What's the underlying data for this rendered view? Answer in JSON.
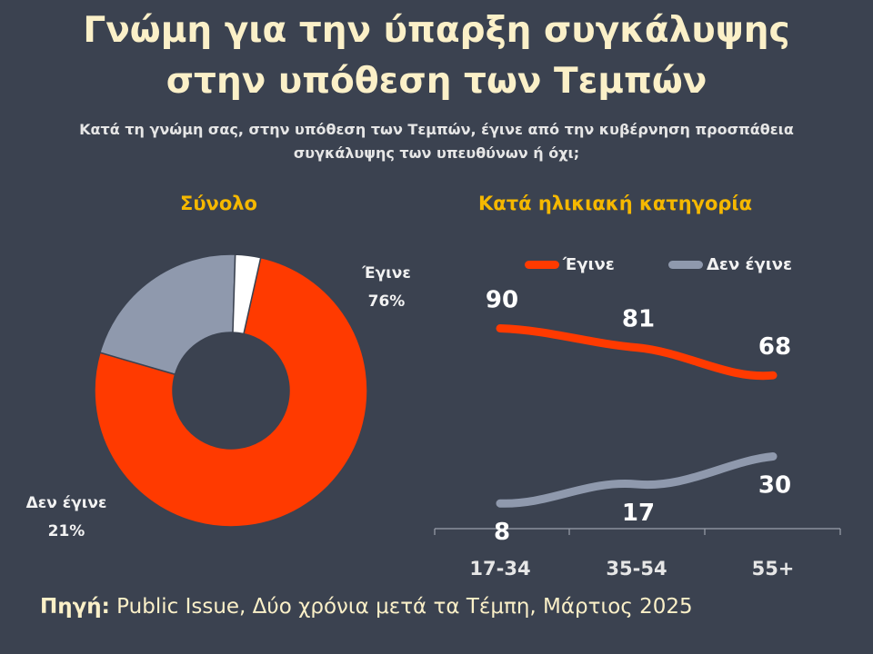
{
  "title_line1": "Γνώμη για την ύπαρξη συγκάλυψης",
  "title_line2": "στην υπόθεση των Τεμπών",
  "subtitle_line1": "Κατά τη γνώμη σας, στην υπόθεση των Τεμπών, έγινε από την κυβέρνηση προσπάθεια",
  "subtitle_line2": "συγκάλυψης των υπευθύνων ή όχι;",
  "colors": {
    "background": "#3b4250",
    "title": "#fbf0c8",
    "section_title": "#f5b800",
    "egine": "#ff3a00",
    "den_egine": "#8f99ad",
    "other": "#ffffff",
    "axis": "#9aa0ab"
  },
  "source_label": "Πηγή:",
  "source_text": " Public Issue, Δύο χρόνια μετά τα Τέμπη, Μάρτιος 2025",
  "chart_data": [
    {
      "type": "pie",
      "title": "Σύνολο",
      "slices": [
        {
          "label": "Έγινε",
          "value": 76,
          "display": "76%",
          "color": "#ff3a00"
        },
        {
          "label": "Δεν έγινε",
          "value": 21,
          "display": "21%",
          "color": "#8f99ad"
        },
        {
          "label": "",
          "value": 3,
          "display": "",
          "color": "#ffffff"
        }
      ]
    },
    {
      "type": "line",
      "title": "Κατά ηλικιακή κατηγορία",
      "categories": [
        "17-34",
        "35-54",
        "55+"
      ],
      "series": [
        {
          "name": "Έγινε",
          "values": [
            90,
            81,
            68
          ],
          "color": "#ff3a00"
        },
        {
          "name": "Δεν έγινε",
          "values": [
            8,
            17,
            30
          ],
          "color": "#8f99ad"
        }
      ],
      "legend": "top"
    }
  ]
}
